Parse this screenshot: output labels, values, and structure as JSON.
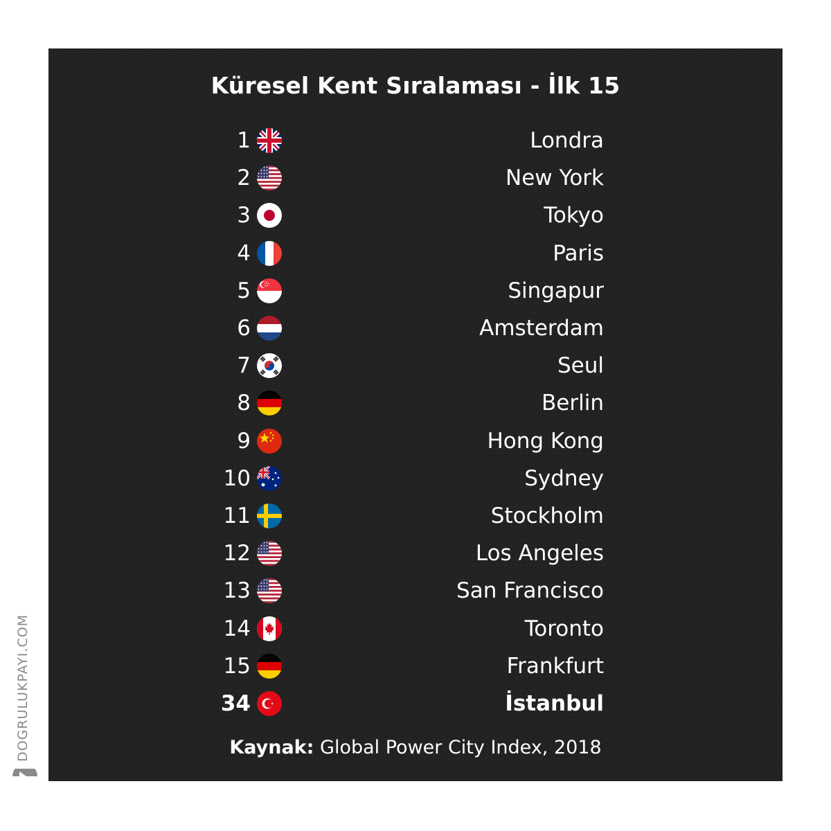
{
  "title": "Küresel Kent Sıralaması - İlk 15",
  "rows": [
    {
      "rank": "1",
      "city": "Londra",
      "flag": "uk-flag-icon"
    },
    {
      "rank": "2",
      "city": "New York",
      "flag": "us-flag-icon"
    },
    {
      "rank": "3",
      "city": "Tokyo",
      "flag": "japan-flag-icon"
    },
    {
      "rank": "4",
      "city": "Paris",
      "flag": "france-flag-icon"
    },
    {
      "rank": "5",
      "city": "Singapur",
      "flag": "singapore-flag-icon"
    },
    {
      "rank": "6",
      "city": "Amsterdam",
      "flag": "netherlands-flag-icon"
    },
    {
      "rank": "7",
      "city": "Seul",
      "flag": "south-korea-flag-icon"
    },
    {
      "rank": "8",
      "city": "Berlin",
      "flag": "germany-flag-icon"
    },
    {
      "rank": "9",
      "city": "Hong Kong",
      "flag": "china-flag-icon"
    },
    {
      "rank": "10",
      "city": "Sydney",
      "flag": "australia-flag-icon"
    },
    {
      "rank": "11",
      "city": "Stockholm",
      "flag": "sweden-flag-icon"
    },
    {
      "rank": "12",
      "city": "Los Angeles",
      "flag": "us-flag-icon"
    },
    {
      "rank": "13",
      "city": "San Francisco",
      "flag": "us-flag-icon"
    },
    {
      "rank": "14",
      "city": "Toronto",
      "flag": "canada-flag-icon"
    },
    {
      "rank": "15",
      "city": "Frankfurt",
      "flag": "germany-flag-icon"
    },
    {
      "rank": "34",
      "city": "İstanbul",
      "flag": "turkey-flag-icon",
      "highlight": true
    }
  ],
  "source": {
    "label": "Kaynak:",
    "text": "Global Power City Index, 2018"
  },
  "watermark": "DOGRULUKPAYI.COM",
  "colors": {
    "panel": "#222222",
    "text": "#ffffff",
    "watermark": "#8a8a8a"
  }
}
